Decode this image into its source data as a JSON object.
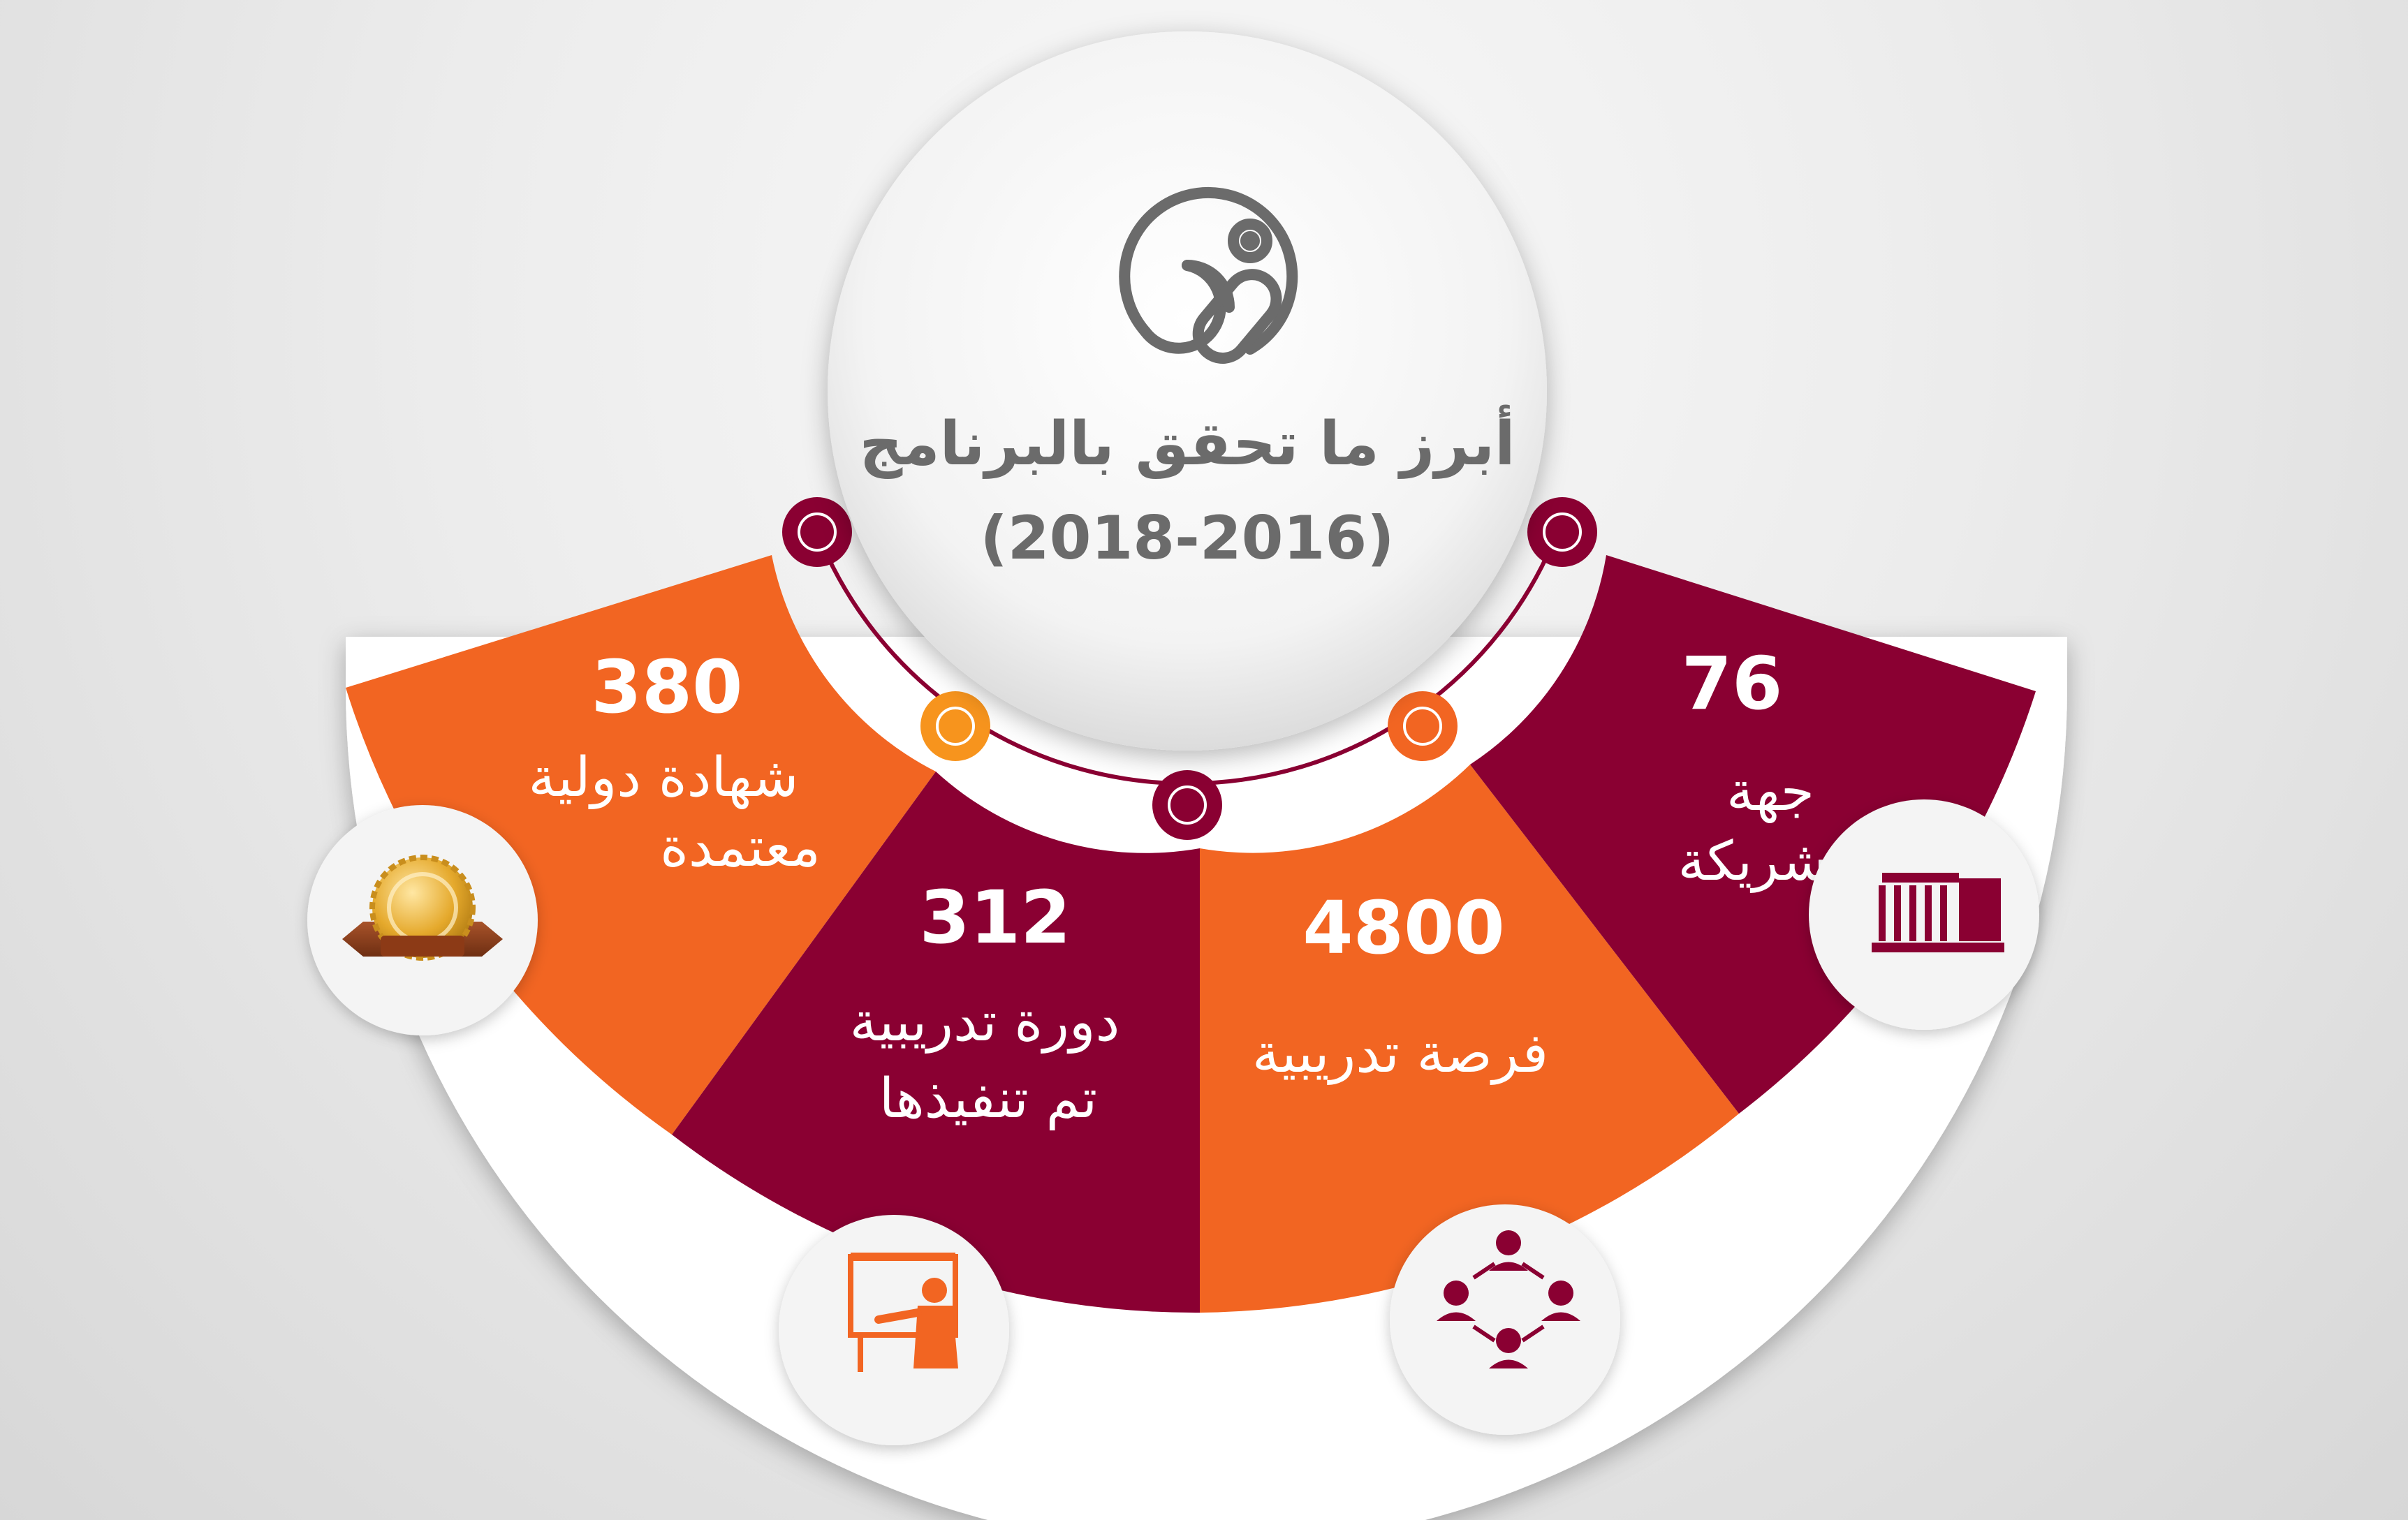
{
  "header": {
    "title": "أبرز ما تحقق بالبرنامج",
    "period": "(2018-2016)",
    "logo_icon": "program-logo-icon"
  },
  "colors": {
    "orange": "#f26522",
    "maroon": "#8a0032",
    "gold": "#f7941d",
    "text_gray": "#6b6b6b"
  },
  "stats": [
    {
      "value": "380",
      "label_line1": "شهادة دولية",
      "label_line2": "معتمدة",
      "icon": "certificate-seal-icon",
      "color": "orange"
    },
    {
      "value": "312",
      "label_line1": "دورة تدريبية",
      "label_line2": "تم تنفيذها",
      "icon": "presenter-board-icon",
      "color": "maroon"
    },
    {
      "value": "4800",
      "label_line1": "فرصة تدريبية",
      "label_line2": "",
      "icon": "group-network-icon",
      "color": "orange"
    },
    {
      "value": "76",
      "label_line1": "جهة",
      "label_line2": "شريكة",
      "icon": "institution-building-icon",
      "color": "maroon"
    }
  ]
}
